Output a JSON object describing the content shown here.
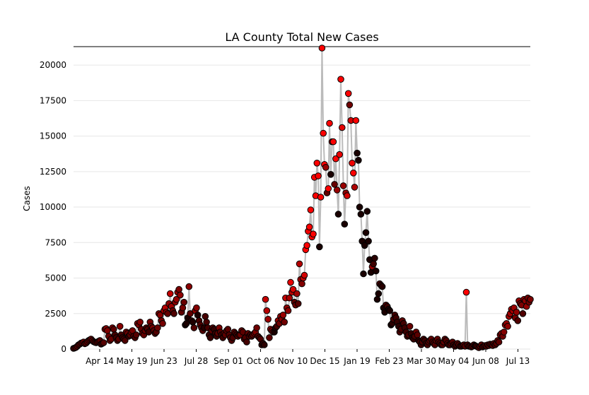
{
  "chart_data": {
    "type": "scatter",
    "title": "LA County Total New Cases",
    "xlabel": "",
    "ylabel": "Cases",
    "ylim": [
      0,
      21300
    ],
    "x_ticks": [
      "Apr 14",
      "May 19",
      "Jun 23",
      "Jul 28",
      "Sep 01",
      "Oct 06",
      "Nov 10",
      "Dec 15",
      "Jan 19",
      "Feb 23",
      "Mar 30",
      "May 04",
      "Jun 08",
      "Jul 13"
    ],
    "y_ticks": [
      0,
      2500,
      5000,
      7500,
      10000,
      12500,
      15000,
      17500,
      20000
    ],
    "y_tick_labels": [
      "0",
      "2500",
      "5000",
      "7500",
      "10000",
      "12500",
      "15000",
      "17500",
      "20000"
    ],
    "grid": "horizontal",
    "marker_color_low": "#1a0000",
    "marker_color_high": "#ff0000",
    "line_color": "#bbbbbb",
    "series": [
      {
        "values": [
          50,
          80,
          120,
          200,
          300,
          350,
          420,
          450,
          500,
          380,
          420,
          520,
          600,
          650,
          700,
          600,
          520,
          480,
          450,
          500,
          550,
          600,
          350,
          400,
          450,
          1400,
          1450,
          1300,
          900,
          600,
          700,
          1500,
          1400,
          1000,
          800,
          600,
          700,
          1600,
          1000,
          800,
          700,
          600,
          1200,
          1100,
          900,
          1000,
          1200,
          1300,
          900,
          800,
          1000,
          1800,
          1700,
          1900,
          1400,
          1100,
          1000,
          1300,
          1500,
          1400,
          1200,
          1900,
          1600,
          1500,
          1300,
          1100,
          1200,
          1500,
          2500,
          2400,
          2000,
          1800,
          2700,
          2900,
          2600,
          2500,
          3200,
          3900,
          3000,
          2700,
          2500,
          3300,
          3500,
          4000,
          4200,
          3800,
          2600,
          2900,
          3300,
          1700,
          1800,
          2200,
          4400,
          2500,
          2000,
          1900,
          1500,
          2700,
          2900,
          2400,
          2000,
          1700,
          1500,
          1300,
          1500,
          2300,
          1900,
          1500,
          1000,
          800,
          1300,
          1500,
          1400,
          1100,
          900,
          1100,
          1500,
          1200,
          1000,
          800,
          1100,
          1000,
          1300,
          1400,
          1000,
          800,
          600,
          800,
          1200,
          1100,
          1000,
          900,
          1000,
          1000,
          1300,
          1200,
          700,
          800,
          500,
          1100,
          900,
          1000,
          900,
          1000,
          1100,
          1200,
          1500,
          900,
          800,
          700,
          300,
          400,
          300,
          3500,
          2700,
          2100,
          800,
          1400,
          1300,
          1200,
          1200,
          1500,
          1600,
          2000,
          1800,
          2300,
          2100,
          2400,
          1900,
          3600,
          2900,
          2700,
          3600,
          4700,
          4000,
          4200,
          3300,
          3100,
          3900,
          3200,
          6000,
          4900,
          4600,
          5000,
          5200,
          7000,
          7300,
          8300,
          8600,
          9800,
          7900,
          8100,
          12100,
          10800,
          13100,
          12200,
          7200,
          10700,
          21200,
          15200,
          13000,
          12800,
          11000,
          11300,
          15900,
          12300,
          14600,
          14600,
          11600,
          13400,
          11200,
          9500,
          13700,
          19000,
          15600,
          11500,
          8800,
          11000,
          10800,
          18000,
          17200,
          16100,
          13100,
          12400,
          11400,
          16100,
          13800,
          13300,
          10000,
          9500,
          7600,
          5300,
          7300,
          8200,
          9700,
          7600,
          6300,
          5400,
          5800,
          6000,
          6400,
          5500,
          3500,
          3900,
          4600,
          4500,
          4400,
          2900,
          2600,
          3100,
          3000,
          2800,
          2700,
          1700,
          1800,
          2100,
          2400,
          2200,
          1900,
          1600,
          1200,
          1400,
          2000,
          1800,
          1500,
          1200,
          900,
          1000,
          1600,
          1100,
          800,
          700,
          900,
          1200,
          1000,
          600,
          500,
          300,
          500,
          700,
          600,
          400,
          300,
          500,
          600,
          700,
          500,
          400,
          300,
          600,
          700,
          500,
          400,
          300,
          300,
          500,
          700,
          600,
          400,
          300,
          300,
          400,
          500,
          300,
          200,
          300,
          400,
          300,
          200,
          200,
          250,
          300,
          200,
          4000,
          300,
          200,
          200,
          150,
          200,
          300,
          250,
          200,
          150,
          100,
          200,
          300,
          150,
          200,
          250,
          200,
          300,
          250,
          350,
          300,
          250,
          400,
          300,
          400,
          600,
          500,
          1000,
          1100,
          900,
          1200,
          1700,
          1800,
          1600,
          2300,
          2500,
          2800,
          2700,
          2900,
          2200,
          2600,
          2000,
          3400,
          3200,
          3100,
          2500,
          3500,
          3400,
          3000,
          3600,
          3300,
          3500
        ]
      }
    ]
  }
}
